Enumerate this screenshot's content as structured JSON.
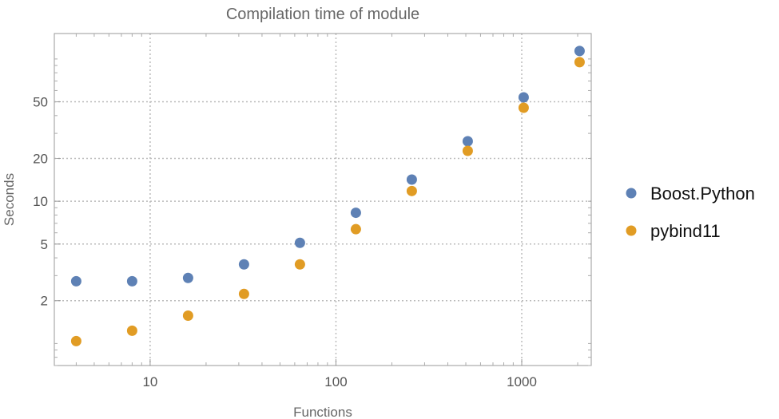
{
  "chart_data": {
    "type": "scatter",
    "title": "Compilation time of module",
    "xlabel": "Functions",
    "ylabel": "Seconds",
    "x_scale": "log",
    "y_scale": "log",
    "xlim": [
      3.05,
      2366
    ],
    "ylim": [
      0.7,
      151
    ],
    "grid": true,
    "legend_position": "right",
    "x_ticks": [
      10,
      100,
      1000
    ],
    "x_tick_labels": [
      "10",
      "100",
      "1000"
    ],
    "y_ticks": [
      2,
      5,
      10,
      20,
      50
    ],
    "y_tick_labels": [
      "2",
      "5",
      "10",
      "20",
      "50"
    ],
    "x": [
      4,
      8,
      16,
      32,
      64,
      128,
      256,
      512,
      1024,
      2048
    ],
    "series": [
      {
        "name": "Boost.Python",
        "color": "#5E81B5",
        "values": [
          2.74,
          2.74,
          2.89,
          3.6,
          5.1,
          8.3,
          14.2,
          26.4,
          53.7,
          113.8
        ]
      },
      {
        "name": "pybind11",
        "color": "#E19C24",
        "values": [
          1.04,
          1.23,
          1.57,
          2.23,
          3.6,
          6.36,
          11.8,
          22.6,
          45.4,
          95
        ]
      }
    ]
  }
}
